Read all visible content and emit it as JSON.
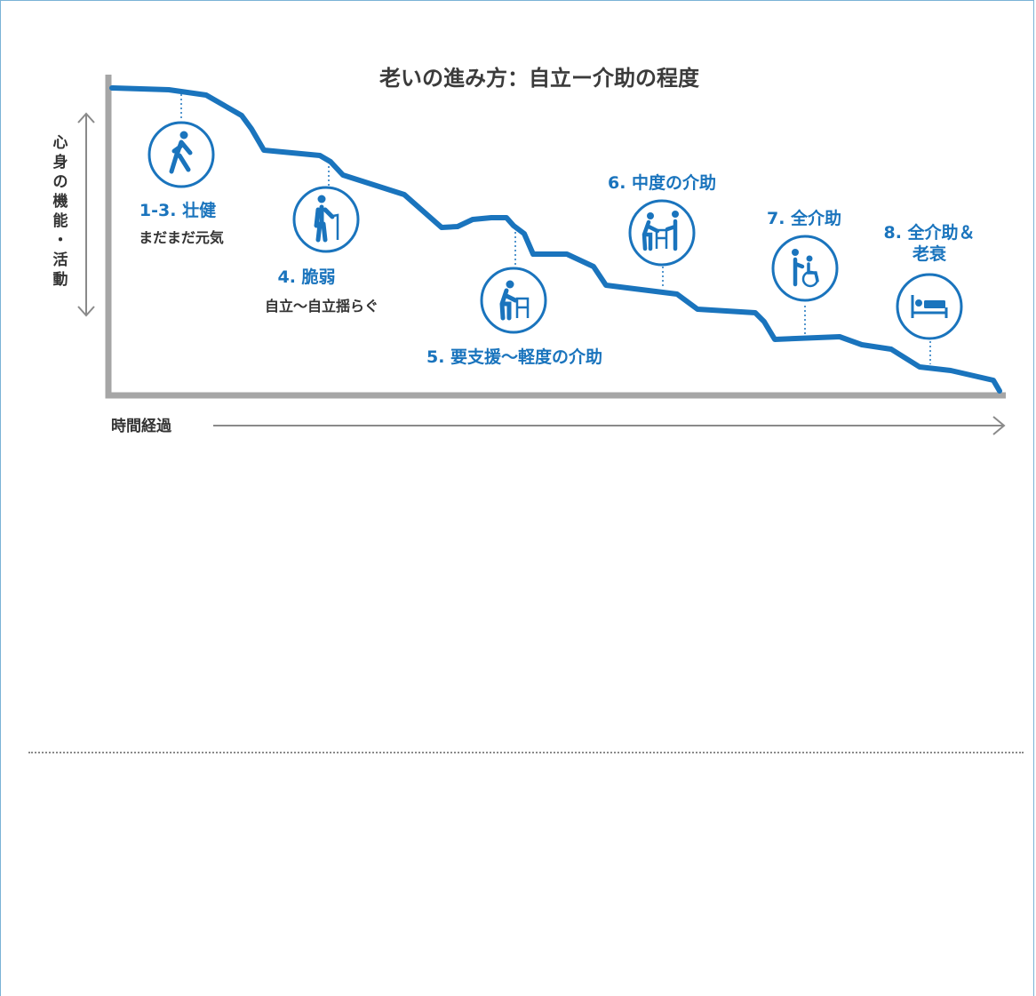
{
  "title": "老いの進み方：自立ー介助の程度",
  "y_axis_label_chars": [
    "心",
    "身",
    "の",
    "機",
    "能",
    "・",
    "活",
    "動"
  ],
  "x_axis_label": "時間経過",
  "colors": {
    "accent": "#1a74bd",
    "axis": "#a6a6a6",
    "text": "#333333"
  },
  "stages": [
    {
      "id": "1-3",
      "label": "1-3. 壮健",
      "sublabel": "まだまだ元気",
      "icon": "walking-person-icon"
    },
    {
      "id": "4",
      "label": "4. 脆弱",
      "sublabel": "自立〜自立揺らぐ",
      "icon": "person-with-cane-icon"
    },
    {
      "id": "5",
      "label": "5. 要支援〜軽度の介助",
      "sublabel": "",
      "icon": "person-with-walker-icon"
    },
    {
      "id": "6",
      "label": "6. 中度の介助",
      "sublabel": "",
      "icon": "caregiver-assisting-walker-icon"
    },
    {
      "id": "7",
      "label": "7. 全介助",
      "sublabel": "",
      "icon": "caregiver-with-wheelchair-icon"
    },
    {
      "id": "8",
      "label_line1": "8. 全介助＆",
      "label_line2": "老衰",
      "sublabel": "",
      "icon": "person-in-bed-icon"
    }
  ]
}
